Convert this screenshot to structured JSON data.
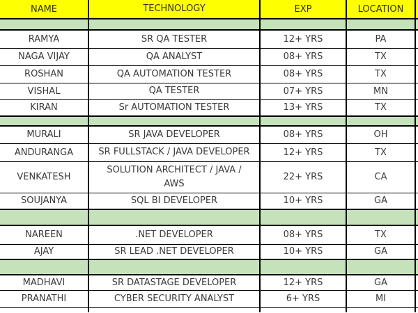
{
  "chart_data": {
    "type": "table",
    "columns": [
      "NAME",
      "TECHNOLOGY",
      "EXP",
      "LOCATION"
    ],
    "rows": [
      {
        "type": "spacer"
      },
      {
        "type": "data",
        "name": "RAMYA",
        "technology": "SR QA TESTER",
        "exp": "12+ YRS",
        "location": "PA"
      },
      {
        "type": "data",
        "name": "NAGA VIJAY",
        "technology": "QA ANALYST",
        "exp": "08+ YRS",
        "location": "TX"
      },
      {
        "type": "data",
        "name": "ROSHAN",
        "technology": "QA AUTOMATION TESTER",
        "exp": "08+ YRS",
        "location": "TX"
      },
      {
        "type": "data",
        "name": "VISHAL",
        "technology": "QA TESTER",
        "exp": "07+ YRS",
        "location": "MN"
      },
      {
        "type": "data",
        "name": "KIRAN",
        "technology": "Sr AUTOMATION TESTER",
        "exp": "13+ YRS",
        "location": "TX"
      },
      {
        "type": "spacer"
      },
      {
        "type": "data",
        "name": "MURALI",
        "technology": "SR JAVA DEVELOPER",
        "exp": "08+ YRS",
        "location": "OH"
      },
      {
        "type": "data",
        "name": "ANDURANGA",
        "technology": "SR FULLSTACK / JAVA DEVELOPER",
        "exp": "12+ YRS",
        "location": "TX"
      },
      {
        "type": "data",
        "name": "VENKATESH",
        "technology": "SOLUTION ARCHITECT / JAVA /\nAWS",
        "exp": "22+ YRS",
        "location": "CA"
      },
      {
        "type": "data",
        "name": "SOUJANYA",
        "technology": "SQL BI DEVELOPER",
        "exp": "10+ YRS",
        "location": "GA"
      },
      {
        "type": "spacer"
      },
      {
        "type": "data",
        "name": "NAREEN",
        "technology": ".NET DEVELOPER",
        "exp": "08+ YRS",
        "location": "TX"
      },
      {
        "type": "data",
        "name": "AJAY",
        "technology": "SR LEAD .NET DEVELOPER",
        "exp": "10+ YRS",
        "location": "GA"
      },
      {
        "type": "spacer"
      },
      {
        "type": "data",
        "name": "MADHAVI",
        "technology": "SR DATASTAGE DEVELOPER",
        "exp": "12+ YRS",
        "location": "GA"
      },
      {
        "type": "data",
        "name": "PRANATHI",
        "technology": "CYBER SECURITY ANALYST",
        "exp": "6+ YRS",
        "location": "MI"
      },
      {
        "type": "partial"
      }
    ]
  },
  "colors": {
    "header_bg": "#feff00",
    "spacer_bg": "#c5e2bb",
    "border": "#000000",
    "text": "#3a3a3a"
  }
}
